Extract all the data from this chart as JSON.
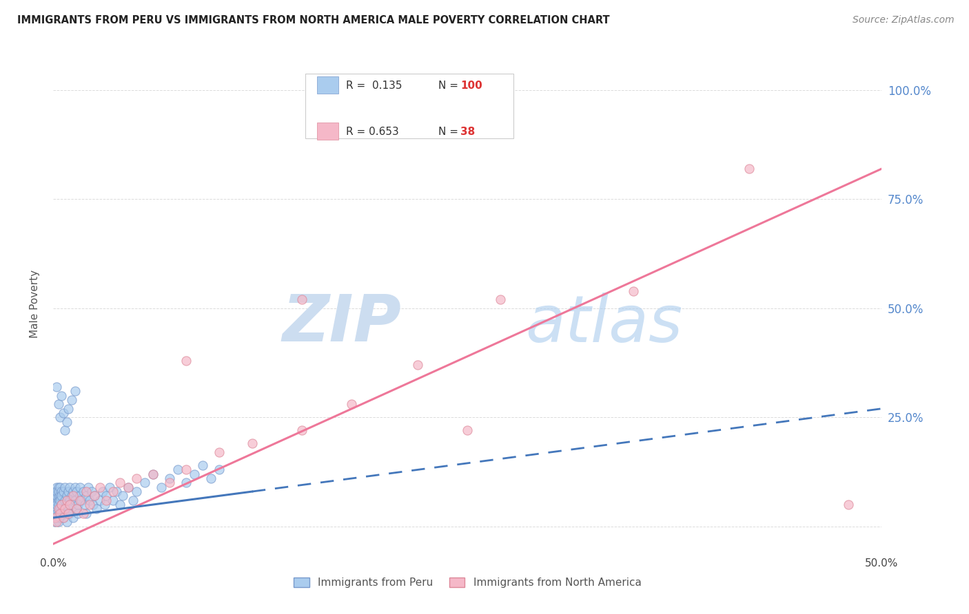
{
  "title": "IMMIGRANTS FROM PERU VS IMMIGRANTS FROM NORTH AMERICA MALE POVERTY CORRELATION CHART",
  "source": "Source: ZipAtlas.com",
  "ylabel": "Male Poverty",
  "x_min": 0.0,
  "x_max": 0.5,
  "y_min": -0.06,
  "y_max": 1.08,
  "grid_color": "#cccccc",
  "background_color": "#ffffff",
  "peru_color": "#aaccee",
  "peru_edge_color": "#7799cc",
  "north_america_color": "#f5b8c8",
  "north_america_edge_color": "#dd8899",
  "trend_peru_color": "#4477bb",
  "trend_na_color": "#ee7799",
  "watermark_zip_color": "#ccddf0",
  "watermark_atlas_color": "#aaccee",
  "legend_R_color": "#333333",
  "legend_N_color": "#dd3333",
  "R_peru": 0.135,
  "N_peru": 100,
  "R_na": 0.653,
  "N_na": 38,
  "trend_peru_x0": 0.0,
  "trend_peru_y0": 0.02,
  "trend_peru_x1": 0.5,
  "trend_peru_y1": 0.27,
  "trend_na_x0": 0.0,
  "trend_na_y0": -0.04,
  "trend_na_x1": 0.5,
  "trend_na_y1": 0.82,
  "peru_x": [
    0.001,
    0.001,
    0.001,
    0.001,
    0.001,
    0.001,
    0.001,
    0.001,
    0.002,
    0.002,
    0.002,
    0.002,
    0.002,
    0.002,
    0.002,
    0.003,
    0.003,
    0.003,
    0.003,
    0.003,
    0.003,
    0.003,
    0.004,
    0.004,
    0.004,
    0.004,
    0.004,
    0.005,
    0.005,
    0.005,
    0.005,
    0.006,
    0.006,
    0.006,
    0.007,
    0.007,
    0.007,
    0.008,
    0.008,
    0.008,
    0.009,
    0.009,
    0.01,
    0.01,
    0.01,
    0.011,
    0.011,
    0.012,
    0.012,
    0.013,
    0.013,
    0.014,
    0.014,
    0.015,
    0.015,
    0.016,
    0.016,
    0.017,
    0.018,
    0.019,
    0.02,
    0.02,
    0.021,
    0.022,
    0.023,
    0.024,
    0.025,
    0.026,
    0.028,
    0.03,
    0.031,
    0.032,
    0.034,
    0.036,
    0.038,
    0.04,
    0.042,
    0.045,
    0.048,
    0.05,
    0.055,
    0.06,
    0.065,
    0.07,
    0.075,
    0.08,
    0.085,
    0.09,
    0.095,
    0.1,
    0.002,
    0.003,
    0.004,
    0.005,
    0.006,
    0.007,
    0.008,
    0.009,
    0.011,
    0.013
  ],
  "peru_y": [
    0.05,
    0.03,
    0.08,
    0.02,
    0.06,
    0.04,
    0.01,
    0.07,
    0.09,
    0.04,
    0.07,
    0.02,
    0.05,
    0.08,
    0.03,
    0.06,
    0.09,
    0.03,
    0.07,
    0.05,
    0.01,
    0.08,
    0.04,
    0.07,
    0.02,
    0.06,
    0.09,
    0.05,
    0.08,
    0.03,
    0.07,
    0.04,
    0.08,
    0.02,
    0.06,
    0.09,
    0.03,
    0.07,
    0.05,
    0.01,
    0.08,
    0.04,
    0.06,
    0.09,
    0.03,
    0.07,
    0.05,
    0.08,
    0.02,
    0.06,
    0.09,
    0.04,
    0.08,
    0.05,
    0.03,
    0.07,
    0.09,
    0.06,
    0.08,
    0.05,
    0.07,
    0.03,
    0.09,
    0.06,
    0.08,
    0.05,
    0.07,
    0.04,
    0.06,
    0.08,
    0.05,
    0.07,
    0.09,
    0.06,
    0.08,
    0.05,
    0.07,
    0.09,
    0.06,
    0.08,
    0.1,
    0.12,
    0.09,
    0.11,
    0.13,
    0.1,
    0.12,
    0.14,
    0.11,
    0.13,
    0.32,
    0.28,
    0.25,
    0.3,
    0.26,
    0.22,
    0.24,
    0.27,
    0.29,
    0.31
  ],
  "na_x": [
    0.001,
    0.002,
    0.003,
    0.004,
    0.005,
    0.006,
    0.007,
    0.008,
    0.009,
    0.01,
    0.012,
    0.014,
    0.016,
    0.018,
    0.02,
    0.022,
    0.025,
    0.028,
    0.032,
    0.036,
    0.04,
    0.045,
    0.05,
    0.06,
    0.07,
    0.08,
    0.1,
    0.12,
    0.15,
    0.18,
    0.22,
    0.27,
    0.35,
    0.42,
    0.08,
    0.15,
    0.25,
    0.48
  ],
  "na_y": [
    0.02,
    0.01,
    0.04,
    0.03,
    0.05,
    0.02,
    0.04,
    0.06,
    0.03,
    0.05,
    0.07,
    0.04,
    0.06,
    0.03,
    0.08,
    0.05,
    0.07,
    0.09,
    0.06,
    0.08,
    0.1,
    0.09,
    0.11,
    0.12,
    0.1,
    0.13,
    0.17,
    0.19,
    0.22,
    0.28,
    0.37,
    0.52,
    0.54,
    0.82,
    0.38,
    0.52,
    0.22,
    0.05
  ]
}
